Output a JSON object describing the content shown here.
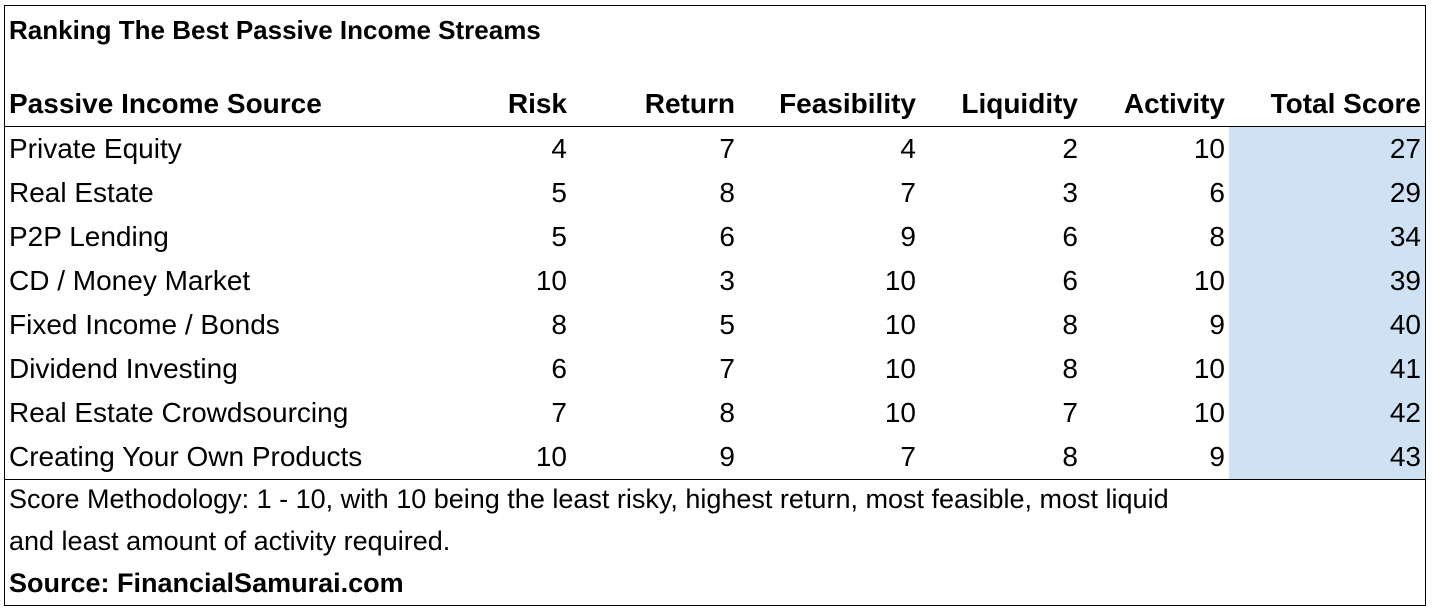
{
  "chart_data": {
    "type": "table",
    "title": "Ranking The Best Passive Income Streams",
    "columns": [
      "Passive Income Source",
      "Risk",
      "Return",
      "Feasibility",
      "Liquidity",
      "Activity",
      "Total Score"
    ],
    "rows": [
      {
        "source": "Private Equity",
        "risk": "4",
        "return": "7",
        "feasibility": "4",
        "liquidity": "2",
        "activity": "10",
        "total": "27"
      },
      {
        "source": "Real Estate",
        "risk": "5",
        "return": "8",
        "feasibility": "7",
        "liquidity": "3",
        "activity": "6",
        "total": "29"
      },
      {
        "source": "P2P Lending",
        "risk": "5",
        "return": "6",
        "feasibility": "9",
        "liquidity": "6",
        "activity": "8",
        "total": "34"
      },
      {
        "source": "CD / Money Market",
        "risk": "10",
        "return": "3",
        "feasibility": "10",
        "liquidity": "6",
        "activity": "10",
        "total": "39"
      },
      {
        "source": "Fixed Income / Bonds",
        "risk": "8",
        "return": "5",
        "feasibility": "10",
        "liquidity": "8",
        "activity": "9",
        "total": "40"
      },
      {
        "source": "Dividend Investing",
        "risk": "6",
        "return": "7",
        "feasibility": "10",
        "liquidity": "8",
        "activity": "10",
        "total": "41"
      },
      {
        "source": "Real Estate Crowdsourcing",
        "risk": "7",
        "return": "8",
        "feasibility": "10",
        "liquidity": "7",
        "activity": "10",
        "total": "42"
      },
      {
        "source": "Creating Your Own Products",
        "risk": "10",
        "return": "9",
        "feasibility": "7",
        "liquidity": "8",
        "activity": "9",
        "total": "43"
      }
    ],
    "highlight_color": "#cfe2f3"
  },
  "footnote": {
    "line1": "Score Methodology: 1 - 10, with 10 being the least risky, highest return, most feasible, most liquid",
    "line2": "and least amount of activity required."
  },
  "source_label": "Source: FinancialSamurai.com"
}
